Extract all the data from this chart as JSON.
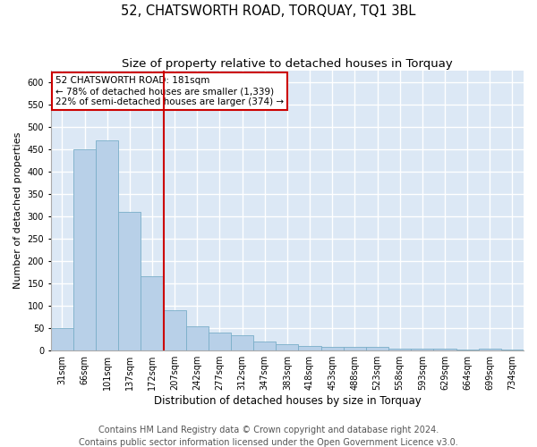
{
  "title": "52, CHATSWORTH ROAD, TORQUAY, TQ1 3BL",
  "subtitle": "Size of property relative to detached houses in Torquay",
  "xlabel": "Distribution of detached houses by size in Torquay",
  "ylabel": "Number of detached properties",
  "categories": [
    "31sqm",
    "66sqm",
    "101sqm",
    "137sqm",
    "172sqm",
    "207sqm",
    "242sqm",
    "277sqm",
    "312sqm",
    "347sqm",
    "383sqm",
    "418sqm",
    "453sqm",
    "488sqm",
    "523sqm",
    "558sqm",
    "593sqm",
    "629sqm",
    "664sqm",
    "699sqm",
    "734sqm"
  ],
  "values": [
    50,
    450,
    470,
    310,
    165,
    90,
    55,
    40,
    35,
    20,
    15,
    10,
    8,
    8,
    8,
    5,
    5,
    5,
    2,
    5,
    2
  ],
  "bar_color": "#b8d0e8",
  "bar_edge_color": "#7aaec8",
  "background_color": "#dce8f5",
  "grid_color": "#ffffff",
  "property_line_x": 4.5,
  "annotation_text_line1": "52 CHATSWORTH ROAD: 181sqm",
  "annotation_text_line2": "← 78% of detached houses are smaller (1,339)",
  "annotation_text_line3": "22% of semi-detached houses are larger (374) →",
  "annotation_box_color": "#cc0000",
  "ylim": [
    0,
    625
  ],
  "yticks": [
    0,
    50,
    100,
    150,
    200,
    250,
    300,
    350,
    400,
    450,
    500,
    550,
    600
  ],
  "footer_line1": "Contains HM Land Registry data © Crown copyright and database right 2024.",
  "footer_line2": "Contains public sector information licensed under the Open Government Licence v3.0.",
  "title_fontsize": 10.5,
  "subtitle_fontsize": 9.5,
  "xlabel_fontsize": 8.5,
  "ylabel_fontsize": 8,
  "footer_fontsize": 7,
  "tick_fontsize": 7,
  "annot_fontsize": 7.5
}
